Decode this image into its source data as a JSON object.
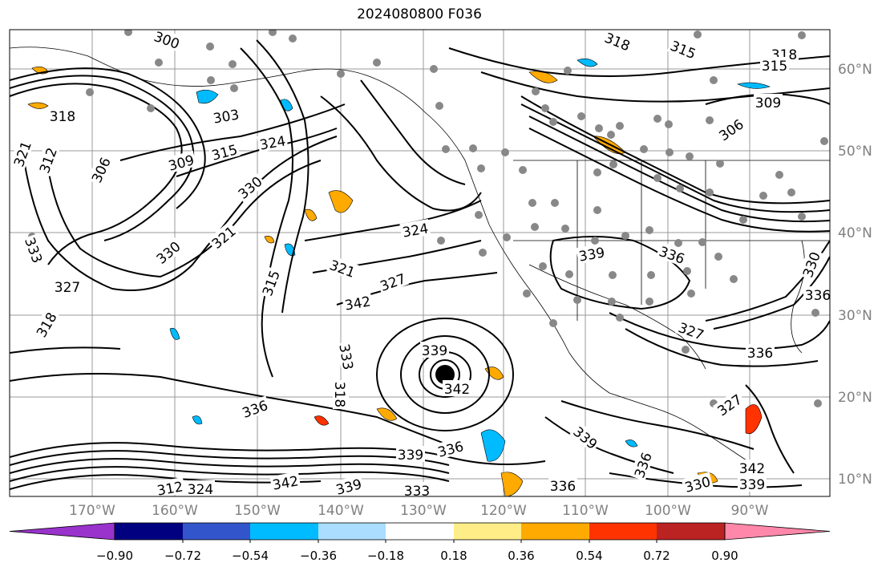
{
  "title": "2024080800 F036",
  "lat_labels": [
    "60°N",
    "50°N",
    "40°N",
    "30°N",
    "20°N",
    "10°N"
  ],
  "lon_labels": [
    "170°W",
    "160°W",
    "150°W",
    "140°W",
    "130°W",
    "120°W",
    "110°W",
    "100°W",
    "90°W"
  ],
  "colorbar": {
    "colors": [
      "#9933cc",
      "#000080",
      "#3355cc",
      "#00bbff",
      "#aaddff",
      "#ffffff",
      "#ffee88",
      "#ffaa00",
      "#ff3300",
      "#bb2222",
      "#ff88aa"
    ],
    "ticks": [
      "−0.90",
      "−0.72",
      "−0.54",
      "−0.36",
      "−0.18",
      "0.18",
      "0.36",
      "0.54",
      "0.72",
      "0.90"
    ]
  },
  "contour_labels": [
    "300",
    "318",
    "315",
    "318",
    "315",
    "309",
    "306",
    "303",
    "318",
    "321",
    "312",
    "306",
    "309",
    "315",
    "324",
    "330",
    "321",
    "330",
    "333",
    "327",
    "318",
    "321",
    "324",
    "327",
    "342",
    "339",
    "336",
    "315",
    "339",
    "333",
    "342",
    "318",
    "336",
    "339",
    "336",
    "327",
    "336",
    "339",
    "336",
    "342",
    "339",
    "342",
    "336",
    "339",
    "330",
    "312",
    "324",
    "333",
    "327",
    "330",
    "336"
  ]
}
